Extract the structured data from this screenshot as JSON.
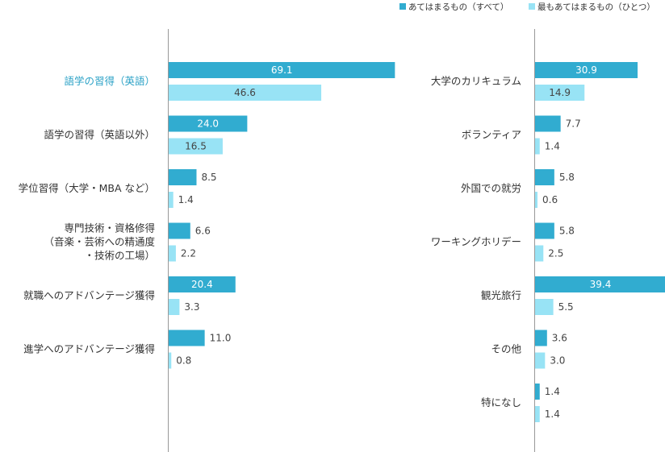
{
  "legend": {
    "all_label": "あてはまるもの（すべて）",
    "most_label": "最もあてはまるもの（ひとつ）"
  },
  "colors": {
    "all": "#31acd0",
    "most": "#98e3f5",
    "highlight_text": "#2aa1c6",
    "axis": "#999999"
  },
  "chart_data": [
    {
      "type": "bar",
      "orientation": "horizontal",
      "grid": false,
      "legend_position": "top-right",
      "categories": [
        [
          "語学の習得（英語）"
        ],
        [
          "語学の習得（英語以外）"
        ],
        [
          "学位習得（大学・MBA など）"
        ],
        [
          "専門技術・資格修得",
          "（音楽・芸術への精通度",
          "・技術の工場）"
        ],
        [
          "就職へのアドバンテージ獲得"
        ],
        [
          "進学へのアドバンテージ獲得"
        ]
      ],
      "highlight_index": 0,
      "series": [
        {
          "name": "あてはまるもの（すべて）",
          "values": [
            69.1,
            24.0,
            8.5,
            6.6,
            20.4,
            11.0
          ]
        },
        {
          "name": "最もあてはまるもの（ひとつ）",
          "values": [
            46.6,
            16.5,
            1.4,
            2.2,
            3.3,
            0.8
          ]
        }
      ],
      "xlim": [
        0,
        70
      ]
    },
    {
      "type": "bar",
      "orientation": "horizontal",
      "grid": false,
      "categories": [
        [
          "大学のカリキュラム"
        ],
        [
          "ボランティア"
        ],
        [
          "外国での就労"
        ],
        [
          "ワーキングホリデー"
        ],
        [
          "観光旅行"
        ],
        [
          "その他"
        ],
        [
          "特になし"
        ]
      ],
      "highlight_index": -1,
      "series": [
        {
          "name": "あてはまるもの（すべて）",
          "values": [
            30.9,
            7.7,
            5.8,
            5.8,
            39.4,
            3.6,
            1.4
          ]
        },
        {
          "name": "最もあてはまるもの（ひとつ）",
          "values": [
            14.9,
            1.4,
            0.6,
            2.5,
            5.5,
            3.0,
            1.4
          ]
        }
      ],
      "xlim": [
        0,
        39.4
      ]
    }
  ]
}
